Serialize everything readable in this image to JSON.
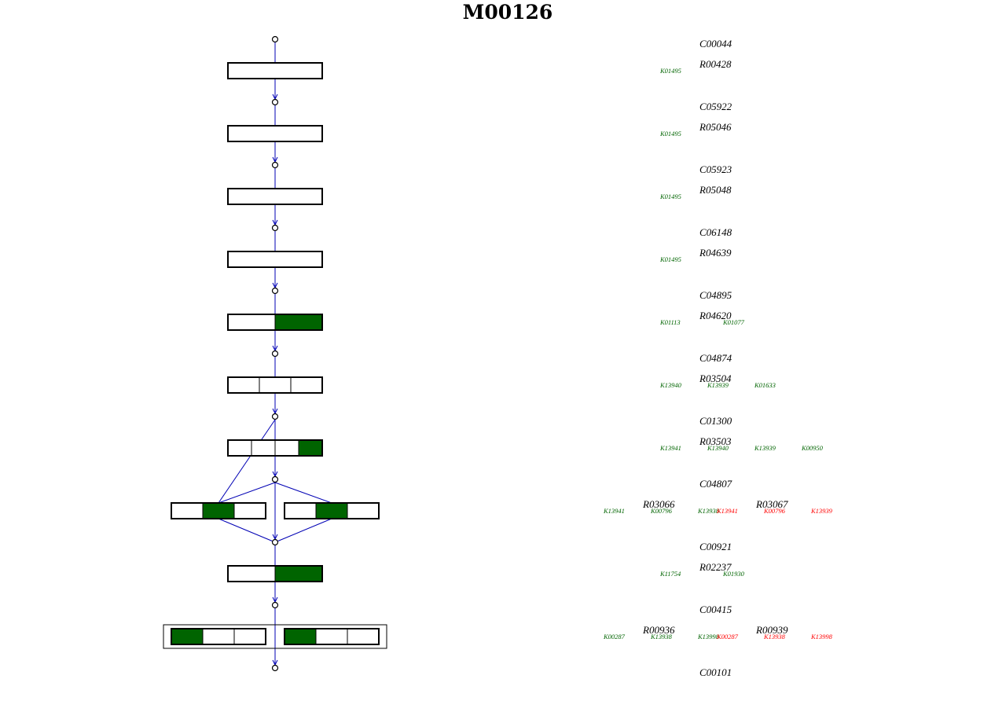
{
  "title": "M00126",
  "colors": {
    "present": "#006400",
    "absent": "#ffffff",
    "edge": "#0000b4",
    "ko_present": "#006400",
    "ko_absent": "#ff0000"
  },
  "compounds": [
    "C00044",
    "C05922",
    "C05923",
    "C06148",
    "C04895",
    "C04874",
    "C01300",
    "C04807",
    "C00921",
    "C00415",
    "C00101"
  ],
  "steps": [
    {
      "reactions": [
        "R00428"
      ],
      "kos": [
        [
          "K01495"
        ]
      ],
      "blocks": [
        [
          false
        ]
      ]
    },
    {
      "reactions": [
        "R05046"
      ],
      "kos": [
        [
          "K01495"
        ]
      ],
      "blocks": [
        [
          false
        ]
      ]
    },
    {
      "reactions": [
        "R05048"
      ],
      "kos": [
        [
          "K01495"
        ]
      ],
      "blocks": [
        [
          false
        ]
      ]
    },
    {
      "reactions": [
        "R04639"
      ],
      "kos": [
        [
          "K01495"
        ]
      ],
      "blocks": [
        [
          false
        ]
      ]
    },
    {
      "reactions": [
        "R04620"
      ],
      "kos": [
        [
          "K01113",
          "K01077"
        ]
      ],
      "blocks": [
        [
          false,
          true
        ]
      ]
    },
    {
      "reactions": [
        "R03504"
      ],
      "kos": [
        [
          "K13940",
          "K13939",
          "K01633"
        ]
      ],
      "blocks": [
        [
          false,
          false,
          false
        ]
      ]
    },
    {
      "reactions": [
        "R03503"
      ],
      "kos": [
        [
          "K13941",
          "K13940",
          "K13939",
          "K00950"
        ]
      ],
      "blocks": [
        [
          false,
          false,
          false,
          true
        ]
      ]
    },
    {
      "reactions": [
        "R03066",
        "R03067"
      ],
      "kos": [
        [
          "K13941",
          "K00796",
          "K13938"
        ],
        [
          "K13941",
          "K00796",
          "K13939"
        ]
      ],
      "blocks": [
        [
          false,
          true,
          false
        ],
        [
          false,
          true,
          false
        ]
      ]
    },
    {
      "reactions": [
        "R02237"
      ],
      "kos": [
        [
          "K11754",
          "K01930"
        ]
      ],
      "blocks": [
        [
          false,
          true
        ]
      ]
    },
    {
      "reactions": [
        "R00936",
        "R00939"
      ],
      "kos": [
        [
          "K00287",
          "K13938",
          "K13998"
        ],
        [
          "K00287",
          "K13938",
          "K13998"
        ]
      ],
      "blocks": [
        [
          true,
          false,
          false
        ],
        [
          true,
          false,
          false
        ]
      ]
    }
  ],
  "ko_status": {
    "step8_left": [
      "present",
      "present",
      "present"
    ],
    "step8_right": [
      "absent",
      "absent",
      "absent"
    ],
    "step10_left": [
      "present",
      "present",
      "present"
    ],
    "step10_right": [
      "absent",
      "absent",
      "absent"
    ]
  }
}
